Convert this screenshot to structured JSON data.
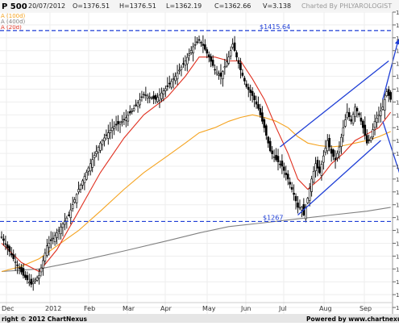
{
  "header": {
    "symbol": "P 500",
    "date": "20/07/2012",
    "open": "O=1376.51",
    "high": "H=1376.51",
    "low": "L=1362.19",
    "close": "C=1362.66",
    "volume": "V=3.138",
    "charted_by": "Charted By PHLYAROLOGIST"
  },
  "legend": [
    {
      "label": "A (100d)",
      "color": "#f5a31f"
    },
    {
      "label": "A (400d)",
      "color": "#808080"
    },
    {
      "label": "A (20d)",
      "color": "#e03020"
    }
  ],
  "annotations": {
    "resistance_label": "$1415.64",
    "support_label": "$1267"
  },
  "footer": {
    "copyright": "right © 2012 ChartNexus",
    "powered": "Powered by www.chartnexus.com"
  },
  "colors": {
    "background": "#ffffff",
    "header_bg": "#f4f4f4",
    "footer_bg": "#e6e6e6",
    "candle": "#000000",
    "ma20": "#e03020",
    "ma100": "#f5a31f",
    "ma400": "#808080",
    "annotation": "#1f3fd6"
  },
  "chart_data": {
    "type": "candlestick",
    "x_tick_labels": [
      "Dec",
      "2012",
      "Feb",
      "Mar",
      "Apr",
      "May",
      "Jun",
      "Jul",
      "Aug",
      "Sep"
    ],
    "y_range": [
      1195,
      1430
    ],
    "resistance": 1415.64,
    "support": 1267,
    "grid": true,
    "series_labels": [
      "A (100d)",
      "A (400d)",
      "A (20d)"
    ],
    "close_path": [
      [
        0,
        1255
      ],
      [
        6,
        1238
      ],
      [
        11,
        1225
      ],
      [
        15,
        1218
      ],
      [
        19,
        1225
      ],
      [
        23,
        1248
      ],
      [
        28,
        1258
      ],
      [
        34,
        1272
      ],
      [
        39,
        1292
      ],
      [
        45,
        1312
      ],
      [
        50,
        1328
      ],
      [
        56,
        1340
      ],
      [
        62,
        1346
      ],
      [
        67,
        1355
      ],
      [
        72,
        1366
      ],
      [
        78,
        1362
      ],
      [
        84,
        1372
      ],
      [
        88,
        1380
      ],
      [
        93,
        1392
      ],
      [
        97,
        1403
      ],
      [
        100,
        1408
      ],
      [
        102,
        1404
      ],
      [
        105,
        1395
      ],
      [
        108,
        1385
      ],
      [
        111,
        1380
      ],
      [
        115,
        1395
      ],
      [
        117,
        1405
      ],
      [
        119,
        1395
      ],
      [
        121,
        1385
      ],
      [
        124,
        1372
      ],
      [
        127,
        1365
      ],
      [
        130,
        1355
      ],
      [
        133,
        1340
      ],
      [
        136,
        1322
      ],
      [
        139,
        1315
      ],
      [
        142,
        1310
      ],
      [
        145,
        1300
      ],
      [
        148,
        1288
      ],
      [
        150,
        1278
      ],
      [
        152,
        1278
      ],
      [
        153,
        1272
      ],
      [
        155,
        1285
      ],
      [
        157,
        1300
      ],
      [
        159,
        1312
      ],
      [
        161,
        1305
      ],
      [
        163,
        1318
      ],
      [
        165,
        1330
      ],
      [
        167,
        1320
      ],
      [
        169,
        1315
      ],
      [
        171,
        1325
      ],
      [
        173,
        1340
      ],
      [
        175,
        1352
      ],
      [
        177,
        1345
      ],
      [
        179,
        1356
      ],
      [
        181,
        1350
      ],
      [
        183,
        1340
      ],
      [
        185,
        1328
      ],
      [
        187,
        1332
      ],
      [
        189,
        1345
      ],
      [
        191,
        1350
      ],
      [
        193,
        1356
      ],
      [
        195,
        1368
      ],
      [
        197,
        1362
      ]
    ],
    "ma20": [
      [
        0,
        1250
      ],
      [
        10,
        1235
      ],
      [
        19,
        1228
      ],
      [
        28,
        1245
      ],
      [
        39,
        1275
      ],
      [
        50,
        1305
      ],
      [
        62,
        1332
      ],
      [
        72,
        1350
      ],
      [
        84,
        1364
      ],
      [
        93,
        1380
      ],
      [
        100,
        1395
      ],
      [
        108,
        1395
      ],
      [
        115,
        1392
      ],
      [
        121,
        1392
      ],
      [
        127,
        1378
      ],
      [
        133,
        1362
      ],
      [
        139,
        1340
      ],
      [
        145,
        1320
      ],
      [
        150,
        1300
      ],
      [
        155,
        1292
      ],
      [
        161,
        1300
      ],
      [
        167,
        1312
      ],
      [
        173,
        1320
      ],
      [
        179,
        1330
      ],
      [
        185,
        1335
      ],
      [
        191,
        1340
      ],
      [
        197,
        1352
      ]
    ],
    "ma100": [
      [
        0,
        1228
      ],
      [
        10,
        1232
      ],
      [
        19,
        1238
      ],
      [
        28,
        1248
      ],
      [
        39,
        1260
      ],
      [
        50,
        1275
      ],
      [
        62,
        1292
      ],
      [
        72,
        1305
      ],
      [
        84,
        1318
      ],
      [
        93,
        1328
      ],
      [
        100,
        1336
      ],
      [
        108,
        1340
      ],
      [
        115,
        1345
      ],
      [
        121,
        1348
      ],
      [
        127,
        1350
      ],
      [
        133,
        1348
      ],
      [
        139,
        1345
      ],
      [
        145,
        1340
      ],
      [
        150,
        1333
      ],
      [
        155,
        1328
      ],
      [
        161,
        1326
      ],
      [
        167,
        1325
      ],
      [
        173,
        1326
      ],
      [
        179,
        1328
      ],
      [
        185,
        1330
      ],
      [
        191,
        1333
      ],
      [
        197,
        1337
      ]
    ],
    "ma400": [
      [
        0,
        1228
      ],
      [
        19,
        1230
      ],
      [
        39,
        1236
      ],
      [
        62,
        1244
      ],
      [
        84,
        1252
      ],
      [
        100,
        1258
      ],
      [
        115,
        1263
      ],
      [
        133,
        1266
      ],
      [
        150,
        1269
      ],
      [
        167,
        1272
      ],
      [
        185,
        1275
      ],
      [
        197,
        1278
      ]
    ],
    "channel_lines": [
      {
        "from": [
          150,
          1272
        ],
        "to": [
          192,
          1330
        ]
      },
      {
        "from": [
          141,
          1325
        ],
        "to": [
          196,
          1392
        ]
      }
    ],
    "projection_arrows": [
      {
        "from": [
          193,
          1362
        ],
        "to": [
          201,
          1409
        ]
      },
      {
        "from": [
          201,
          1409
        ],
        "to": [
          221,
          1290
        ]
      },
      {
        "from": [
          193,
          1345
        ],
        "to": [
          205,
          1288
        ]
      }
    ]
  }
}
